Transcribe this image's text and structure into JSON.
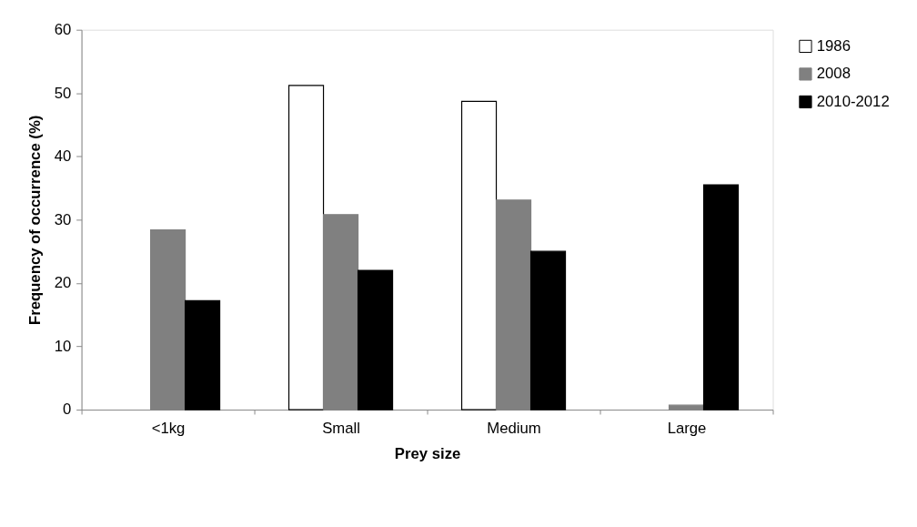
{
  "chart_data": {
    "type": "bar",
    "xlabel": "Prey size",
    "ylabel": "Frequency of occurrence (%)",
    "categories": [
      "<1kg",
      "Small",
      "Medium",
      "Large"
    ],
    "series": [
      {
        "name": "1986",
        "color": "#ffffff",
        "values": [
          null,
          51.2,
          48.7,
          null
        ]
      },
      {
        "name": "2008",
        "color": "#808080",
        "values": [
          28.4,
          30.8,
          33.1,
          0.7
        ]
      },
      {
        "name": "2010-2012",
        "color": "#000000",
        "values": [
          17.2,
          22.0,
          25.0,
          35.5
        ]
      }
    ],
    "ylim": [
      0,
      60
    ],
    "yticks": [
      0,
      10,
      20,
      30,
      40,
      50,
      60
    ],
    "grid": false,
    "legend": "right"
  }
}
